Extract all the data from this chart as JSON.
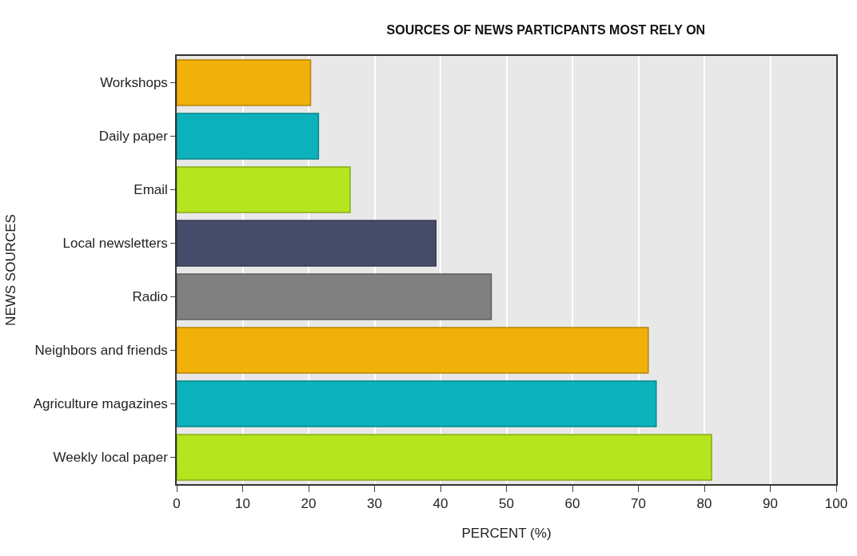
{
  "chart_data": {
    "type": "bar",
    "orientation": "horizontal",
    "title": "SOURCES OF NEWS PARTICPANTS MOST RELY ON",
    "xlabel": "PERCENT (%)",
    "ylabel": "NEWS SOURCES",
    "categories": [
      "Workshops",
      "Daily paper",
      "Email",
      "Local newsletters",
      "Radio",
      "Neighbors and friends",
      "Agriculture magazines",
      "Weekly local paper"
    ],
    "values": [
      20.3,
      21.5,
      26.3,
      39.3,
      47.7,
      71.5,
      72.7,
      81.1
    ],
    "colors": [
      "#f2b00a",
      "#0cb2bb",
      "#b5e51f",
      "#464d6a",
      "#808080",
      "#f2b00a",
      "#0cb2bb",
      "#b5e51f"
    ],
    "xlim": [
      0,
      100
    ],
    "xticks": [
      0,
      10,
      20,
      30,
      40,
      50,
      60,
      70,
      80,
      90,
      100
    ],
    "grid": "x"
  }
}
